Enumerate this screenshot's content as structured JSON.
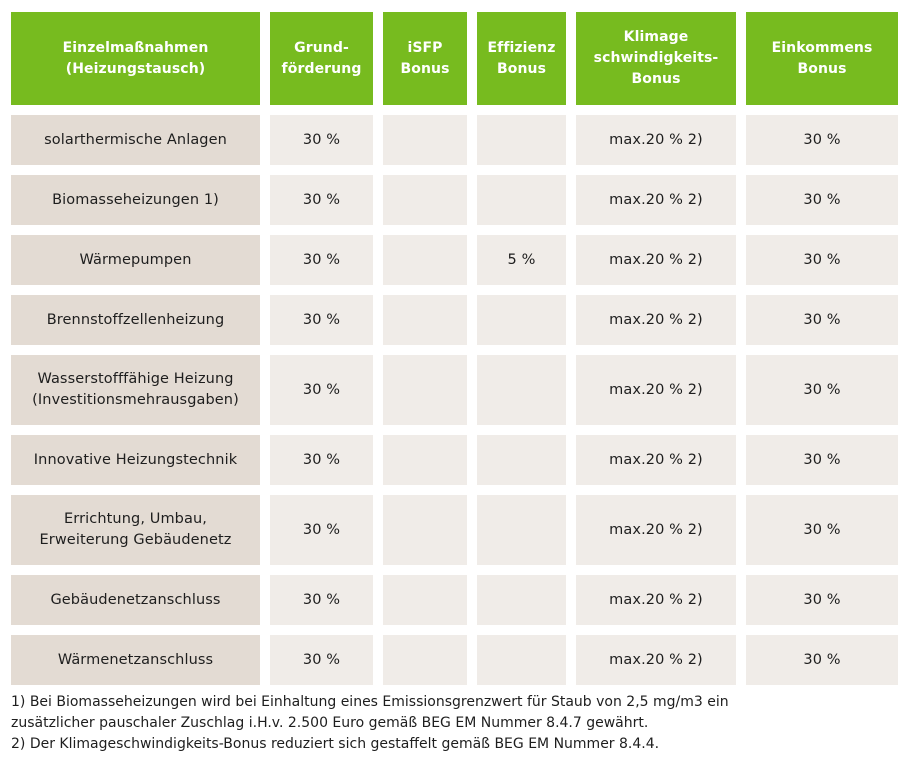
{
  "table": {
    "headers": [
      "Einzelmaßnahmen\n(Heizungstausch)",
      "Grund-\nförderung",
      "iSFP\nBonus",
      "Effizienz\nBonus",
      "Klimage\nschwindigkeits-\nBonus",
      "Einkommens\nBonus"
    ],
    "rows": [
      {
        "measure": "solarthermische Anlagen",
        "grund": "30 %",
        "isfp": "",
        "effizienz": "",
        "klima": "max.20 % 2)",
        "einkommen": "30 %"
      },
      {
        "measure": "Biomasseheizungen 1)",
        "grund": "30 %",
        "isfp": "",
        "effizienz": "",
        "klima": "max.20 % 2)",
        "einkommen": "30 %"
      },
      {
        "measure": "Wärmepumpen",
        "grund": "30 %",
        "isfp": "",
        "effizienz": "5 %",
        "klima": "max.20 % 2)",
        "einkommen": "30 %"
      },
      {
        "measure": "Brennstoffzellenheizung",
        "grund": "30 %",
        "isfp": "",
        "effizienz": "",
        "klima": "max.20 % 2)",
        "einkommen": "30 %"
      },
      {
        "measure": "Wasserstofffähige Heizung\n(Investitionsmehrausgaben)",
        "grund": "30 %",
        "isfp": "",
        "effizienz": "",
        "klima": "max.20 % 2)",
        "einkommen": "30 %"
      },
      {
        "measure": "Innovative Heizungstechnik",
        "grund": "30 %",
        "isfp": "",
        "effizienz": "",
        "klima": "max.20 % 2)",
        "einkommen": "30 %"
      },
      {
        "measure": "Errichtung, Umbau,\nErweiterung Gebäudenetz",
        "grund": "30 %",
        "isfp": "",
        "effizienz": "",
        "klima": "max.20 % 2)",
        "einkommen": "30 %"
      },
      {
        "measure": "Gebäudenetzanschluss",
        "grund": "30 %",
        "isfp": "",
        "effizienz": "",
        "klima": "max.20 % 2)",
        "einkommen": "30 %"
      },
      {
        "measure": "Wärmenetzanschluss",
        "grund": "30 %",
        "isfp": "",
        "effizienz": "",
        "klima": "max.20 % 2)",
        "einkommen": "30 %"
      }
    ]
  },
  "footnotes": [
    "1) Bei Biomasseheizungen wird bei Einhaltung eines Emissionsgrenzwert für Staub von 2,5 mg/m3 ein",
    "zusätzlicher pauschaler Zuschlag i.H.v. 2.500 Euro gemäß BEG EM Nummer 8.4.7 gewährt.",
    "2) Der Klimageschwindigkeits-Bonus reduziert sich gestaffelt gemäß BEG EM Nummer 8.4.4."
  ],
  "colors": {
    "header_green": "#77bb1f",
    "first_col_bg": "#e3dbd3",
    "cell_bg": "#f0ece8"
  }
}
